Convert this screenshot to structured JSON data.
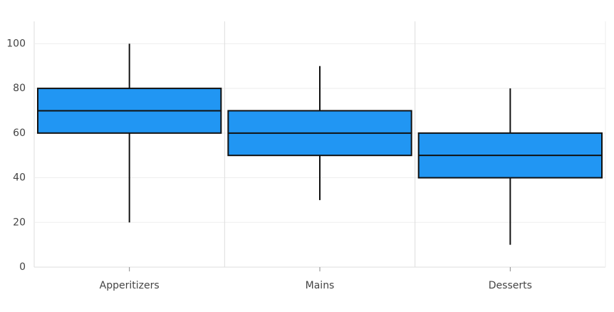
{
  "chart_data": {
    "type": "box",
    "categories": [
      "Apperitizers",
      "Mains",
      "Desserts"
    ],
    "boxes": [
      {
        "min": 20,
        "q1": 60,
        "median": 70,
        "q3": 80,
        "max": 100
      },
      {
        "min": 30,
        "q1": 50,
        "median": 60,
        "q3": 70,
        "max": 90
      },
      {
        "min": 10,
        "q1": 40,
        "median": 50,
        "q3": 60,
        "max": 80
      }
    ],
    "color": "#2196f3",
    "ylim": [
      0,
      110
    ],
    "yticks": [
      0,
      20,
      40,
      60,
      80,
      100
    ],
    "grid": true
  }
}
